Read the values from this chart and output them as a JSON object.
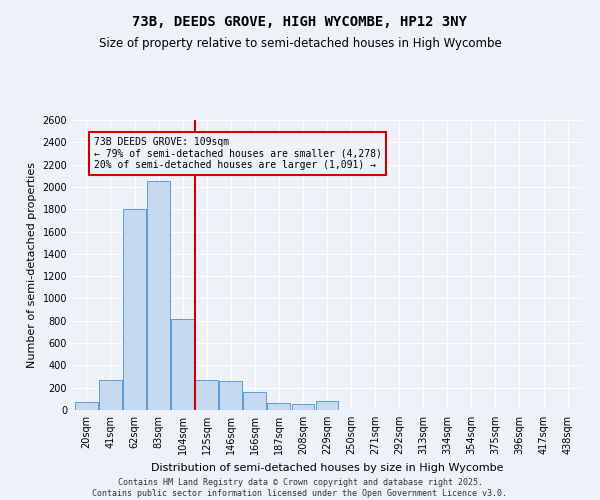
{
  "title": "73B, DEEDS GROVE, HIGH WYCOMBE, HP12 3NY",
  "subtitle": "Size of property relative to semi-detached houses in High Wycombe",
  "xlabel": "Distribution of semi-detached houses by size in High Wycombe",
  "ylabel": "Number of semi-detached properties",
  "bins": [
    "20sqm",
    "41sqm",
    "62sqm",
    "83sqm",
    "104sqm",
    "125sqm",
    "146sqm",
    "166sqm",
    "187sqm",
    "208sqm",
    "229sqm",
    "250sqm",
    "271sqm",
    "292sqm",
    "313sqm",
    "334sqm",
    "354sqm",
    "375sqm",
    "396sqm",
    "417sqm",
    "438sqm"
  ],
  "bar_values": [
    75,
    270,
    1800,
    2050,
    820,
    270,
    260,
    165,
    65,
    55,
    80,
    0,
    0,
    0,
    0,
    0,
    0,
    0,
    0,
    0,
    0
  ],
  "bar_color": "#c5d9f0",
  "bar_edge_color": "#5b9bd5",
  "vline_bin_index": 4,
  "vline_color": "#cc0000",
  "annotation_box_color": "#cc0000",
  "property_label": "73B DEEDS GROVE: 109sqm",
  "smaller_pct": "79%",
  "smaller_count": "4,278",
  "larger_pct": "20%",
  "larger_count": "1,091",
  "ylim": [
    0,
    2600
  ],
  "yticks": [
    0,
    200,
    400,
    600,
    800,
    1000,
    1200,
    1400,
    1600,
    1800,
    2000,
    2200,
    2400,
    2600
  ],
  "bg_color": "#eef2f8",
  "grid_color": "#ffffff",
  "title_fontsize": 10,
  "subtitle_fontsize": 8.5,
  "label_fontsize": 8,
  "tick_fontsize": 7,
  "annot_fontsize": 7,
  "footer_fontsize": 6,
  "footer": "Contains HM Land Registry data © Crown copyright and database right 2025.\nContains public sector information licensed under the Open Government Licence v3.0."
}
